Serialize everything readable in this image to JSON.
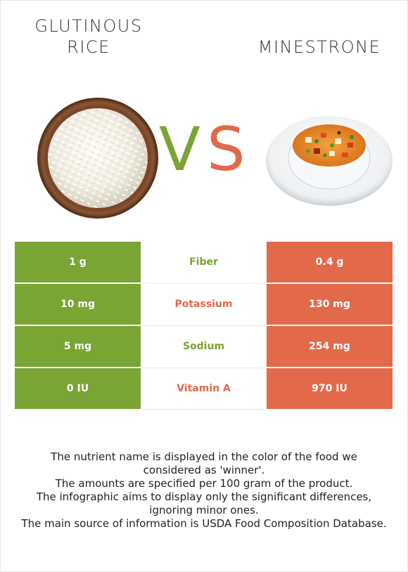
{
  "left_food": {
    "name": "GLUTINOUS\nRICE",
    "image": "bowl-of-rice",
    "color": "#7aa433"
  },
  "right_food": {
    "name": "MINESTRONE",
    "image": "bowl-of-minestrone-soup",
    "color": "#e3694b"
  },
  "vs": {
    "v": "V",
    "s": "S"
  },
  "rows": [
    {
      "nutrient": "Fiber",
      "left": "1 g",
      "right": "0.4 g",
      "winner": "left"
    },
    {
      "nutrient": "Potassium",
      "left": "10 mg",
      "right": "130 mg",
      "winner": "right"
    },
    {
      "nutrient": "Sodium",
      "left": "5 mg",
      "right": "254 mg",
      "winner": "left"
    },
    {
      "nutrient": "Vitamin A",
      "left": "0 IU",
      "right": "970 IU",
      "winner": "right"
    }
  ],
  "footer": {
    "line1": "The nutrient name is displayed in the color of the food we considered as 'winner'.",
    "line2": "The amounts are specified per 100 gram of the product.",
    "line3": "The infographic aims to display only the significant differences, ignoring minor ones.",
    "line4": "The main source of information is USDA Food Composition Database."
  }
}
